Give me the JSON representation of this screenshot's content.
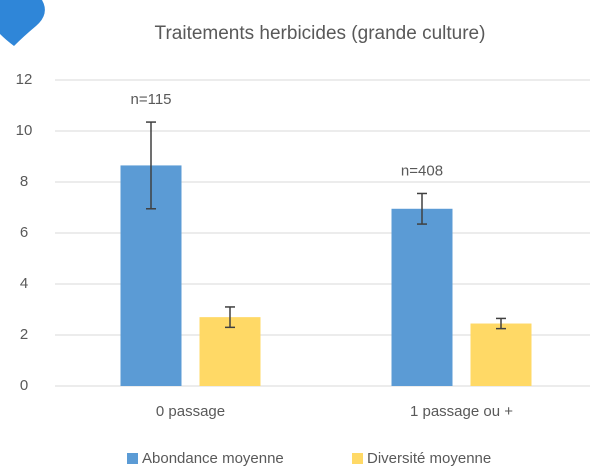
{
  "chart_data": {
    "type": "bar",
    "title": "Traitements herbicides (grande culture)",
    "categories": [
      "0 passage",
      "1 passage ou +"
    ],
    "series": [
      {
        "name": "Abondance moyenne",
        "color": "#5b9bd5",
        "values": [
          8.65,
          6.95
        ],
        "errors": [
          1.7,
          0.6
        ]
      },
      {
        "name": "Diversité moyenne",
        "color": "#ffd966",
        "values": [
          2.7,
          2.45
        ],
        "errors": [
          0.4,
          0.2
        ]
      }
    ],
    "annotations": [
      "n=115",
      "n=408"
    ],
    "ylim": [
      0,
      12
    ],
    "yticks": [
      0,
      2,
      4,
      6,
      8,
      10,
      12
    ],
    "grid": true,
    "legend": "bottom"
  }
}
